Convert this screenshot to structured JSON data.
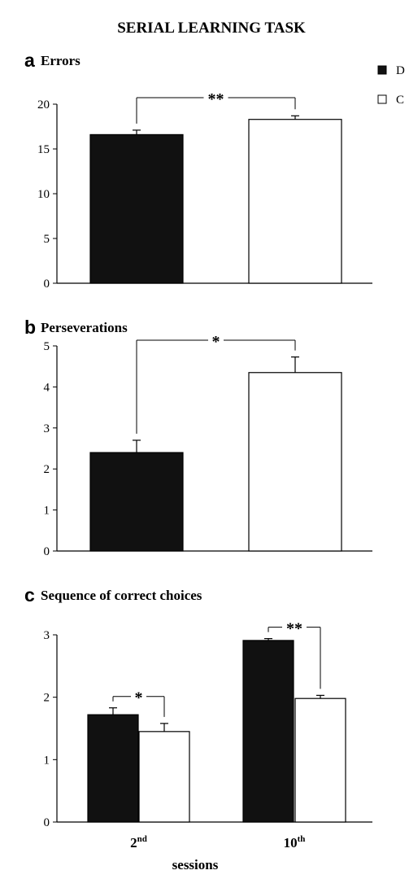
{
  "title": "SERIAL LEARNING TASK",
  "legend": [
    {
      "label": "D",
      "fill": "#111111"
    },
    {
      "label": "C",
      "fill": "#ffffff"
    }
  ],
  "chart_data": [
    {
      "type": "bar",
      "panel": "a",
      "title": "Errors",
      "xlabel": "",
      "ylabel": "",
      "ylim": [
        0,
        20
      ],
      "yticks": [
        "0",
        "5",
        "10",
        "15",
        "20"
      ],
      "categories": [
        ""
      ],
      "series": [
        {
          "name": "D",
          "values": [
            16.6
          ],
          "errors": [
            0.5
          ]
        },
        {
          "name": "C",
          "values": [
            18.3
          ],
          "errors": [
            0.4
          ]
        }
      ],
      "significance": [
        {
          "label": "**",
          "between": [
            "D",
            "C"
          ],
          "category": 0
        }
      ]
    },
    {
      "type": "bar",
      "panel": "b",
      "title": "Perseverations",
      "xlabel": "",
      "ylabel": "",
      "ylim": [
        0,
        5
      ],
      "yticks": [
        "0",
        "1",
        "2",
        "3",
        "4",
        "5"
      ],
      "categories": [
        ""
      ],
      "series": [
        {
          "name": "D",
          "values": [
            2.4
          ],
          "errors": [
            0.3
          ]
        },
        {
          "name": "C",
          "values": [
            4.35
          ],
          "errors": [
            0.38
          ]
        }
      ],
      "significance": [
        {
          "label": "*",
          "between": [
            "D",
            "C"
          ],
          "category": 0
        }
      ]
    },
    {
      "type": "bar",
      "panel": "c",
      "title": "Sequence of correct choices",
      "xlabel": "sessions",
      "ylabel": "",
      "ylim": [
        0,
        3
      ],
      "yticks": [
        "0",
        "1",
        "2",
        "3"
      ],
      "categories": [
        {
          "base": "2",
          "sup": "nd"
        },
        {
          "base": "10",
          "sup": "th"
        }
      ],
      "series": [
        {
          "name": "D",
          "values": [
            1.72,
            2.91
          ],
          "errors": [
            0.11,
            0.03
          ]
        },
        {
          "name": "C",
          "values": [
            1.45,
            1.98
          ],
          "errors": [
            0.13,
            0.05
          ]
        }
      ],
      "significance": [
        {
          "label": "*",
          "between": [
            "D",
            "C"
          ],
          "category": 0
        },
        {
          "label": "**",
          "between": [
            "D",
            "C"
          ],
          "category": 1
        }
      ]
    }
  ]
}
